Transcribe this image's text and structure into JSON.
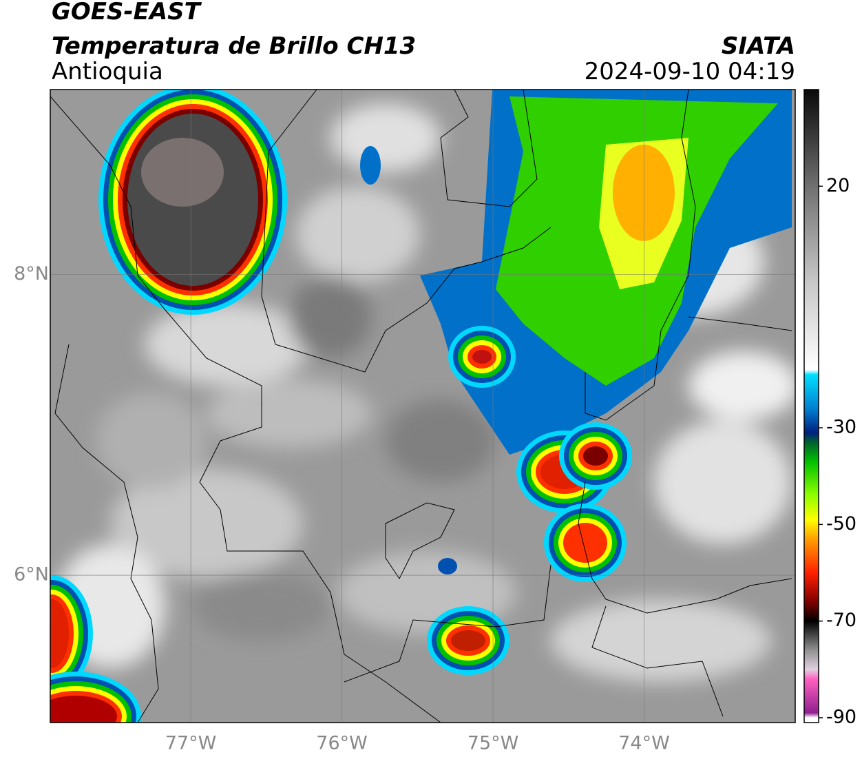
{
  "map": {
    "title": "GOES-EAST",
    "subtitle": "Temperatura de Brillo CH13",
    "region": "Antioquia",
    "source": "SIATA",
    "datetime": "2024-09-10 04:19",
    "xlim": [
      -77.93,
      -73.0
    ],
    "ylim": [
      5.02,
      9.23
    ],
    "xticks": [
      {
        "value": -77,
        "label": "77°W"
      },
      {
        "value": -76,
        "label": "76°W"
      },
      {
        "value": -75,
        "label": "75°W"
      },
      {
        "value": -74,
        "label": "74°W"
      }
    ],
    "yticks": [
      {
        "value": 8,
        "label": "8°N"
      },
      {
        "value": 6,
        "label": "6°N"
      }
    ],
    "grid": true,
    "colorbar": {
      "clim": [
        -91,
        40
      ],
      "ticks": [
        20,
        -30,
        -50,
        -70,
        -90
      ],
      "stops": [
        {
          "value": 40,
          "color": "#0a0a0a"
        },
        {
          "value": 30,
          "color": "#3c3c3c"
        },
        {
          "value": 20,
          "color": "#707070"
        },
        {
          "value": 0,
          "color": "#c8c8c8"
        },
        {
          "value": -18,
          "color": "#ffffff"
        },
        {
          "value": -19,
          "color": "#00e0ff"
        },
        {
          "value": -26,
          "color": "#0080d0"
        },
        {
          "value": -31,
          "color": "#002080"
        },
        {
          "value": -33,
          "color": "#006030"
        },
        {
          "value": -37,
          "color": "#00c000"
        },
        {
          "value": -44,
          "color": "#90ff00"
        },
        {
          "value": -49,
          "color": "#ffff00"
        },
        {
          "value": -53,
          "color": "#ffa000"
        },
        {
          "value": -60,
          "color": "#ff2000"
        },
        {
          "value": -66,
          "color": "#800000"
        },
        {
          "value": -70,
          "color": "#000000"
        },
        {
          "value": -76,
          "color": "#909090"
        },
        {
          "value": -80,
          "color": "#e0d0e0"
        },
        {
          "value": -82,
          "color": "#ff60c0"
        },
        {
          "value": -89,
          "color": "#902090"
        },
        {
          "value": -90,
          "color": "#ffffff"
        }
      ]
    }
  }
}
